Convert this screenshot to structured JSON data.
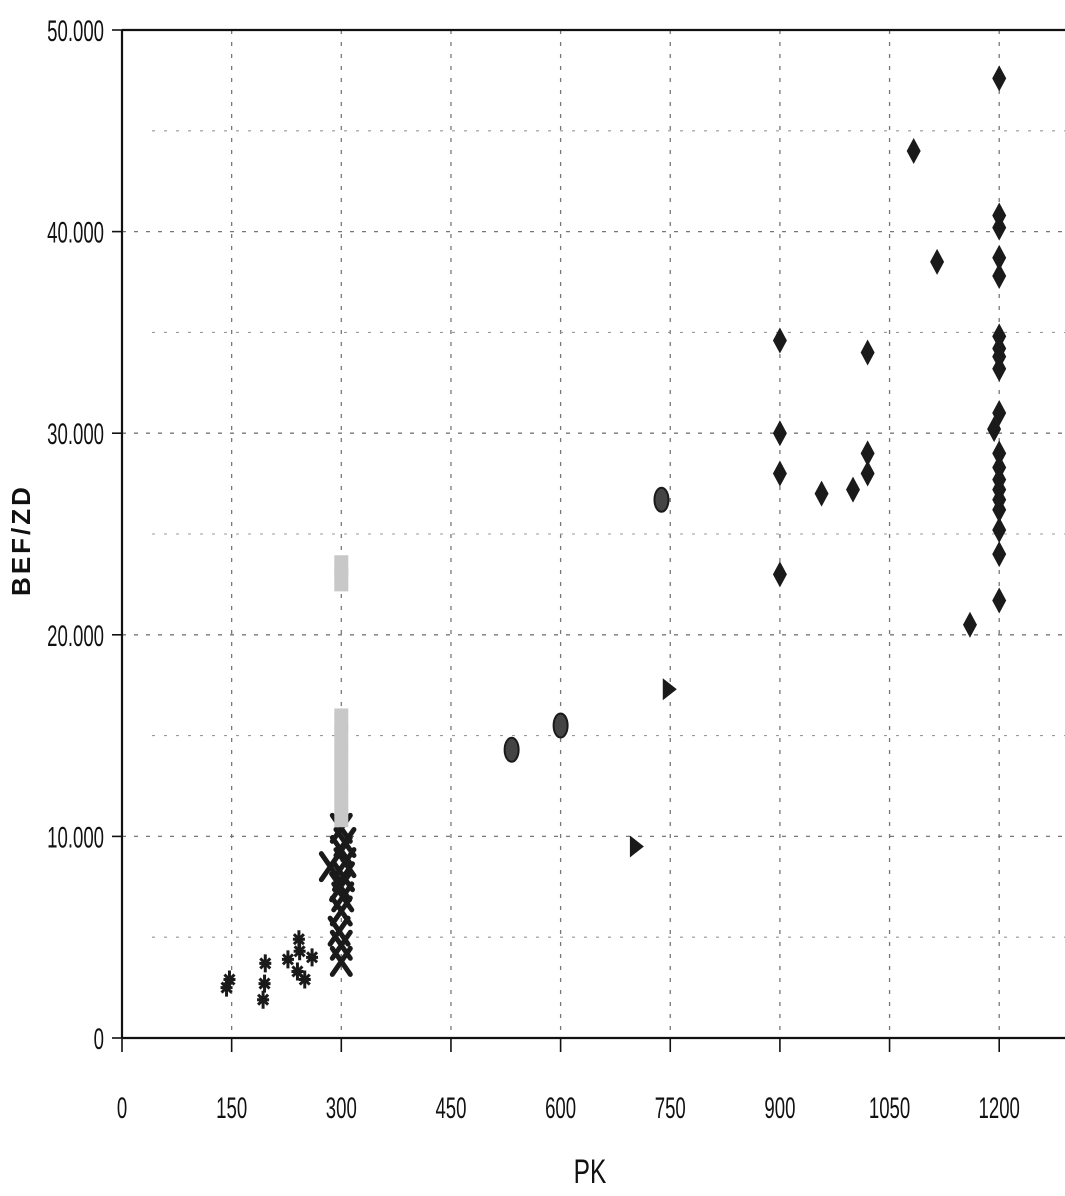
{
  "chart_data": {
    "type": "scatter",
    "xlabel": "PK",
    "ylabel": "BEF/ZD",
    "xlim": [
      0,
      1290
    ],
    "ylim": [
      0,
      50000
    ],
    "x_ticks": [
      0,
      150,
      300,
      450,
      600,
      750,
      900,
      1050,
      1200
    ],
    "x_tick_labels": [
      "0",
      "150",
      "300",
      "450",
      "600",
      "750",
      "900",
      "1050",
      "1200"
    ],
    "y_ticks": [
      0,
      10000,
      20000,
      30000,
      40000,
      50000
    ],
    "y_tick_labels": [
      "0",
      "10.000",
      "20.000",
      "30.000",
      "40.000",
      "50.000"
    ],
    "y_minor_grid": [
      5000,
      15000,
      25000,
      35000,
      45000
    ],
    "grid": true,
    "colors": {
      "marker": "#1a1a1a",
      "light_marker": "#c8c8c8",
      "grid": "#777777",
      "axis": "#111111"
    },
    "series": [
      {
        "marker": "star",
        "points": [
          [
            143,
            2500
          ],
          [
            147,
            2900
          ],
          [
            193,
            1900
          ],
          [
            195,
            2700
          ],
          [
            196,
            3700
          ],
          [
            227,
            3900
          ],
          [
            240,
            3300
          ],
          [
            242,
            4900
          ],
          [
            243,
            4300
          ],
          [
            250,
            2900
          ],
          [
            260,
            4000
          ]
        ]
      },
      {
        "marker": "x",
        "points": [
          [
            285,
            8500
          ],
          [
            297,
            5300
          ],
          [
            299,
            7500
          ],
          [
            300,
            3800
          ],
          [
            300,
            4600
          ],
          [
            300,
            6300
          ],
          [
            300,
            9300
          ],
          [
            300,
            10400
          ],
          [
            302,
            7000
          ],
          [
            303,
            8000
          ],
          [
            305,
            8700
          ],
          [
            305,
            9700
          ]
        ]
      },
      {
        "marker": "light-square",
        "points": [
          [
            300,
            11000
          ],
          [
            300,
            12000
          ],
          [
            300,
            13000
          ],
          [
            300,
            14000
          ],
          [
            300,
            15000
          ],
          [
            300,
            15800
          ],
          [
            300,
            22700
          ],
          [
            300,
            23400
          ]
        ]
      },
      {
        "marker": "ellipse",
        "points": [
          [
            533,
            14300
          ],
          [
            600,
            15500
          ],
          [
            738,
            26700
          ]
        ]
      },
      {
        "marker": "triangle",
        "points": [
          [
            703,
            9500
          ],
          [
            748,
            17300
          ]
        ]
      },
      {
        "marker": "diamond",
        "points": [
          [
            900,
            23000
          ],
          [
            900,
            28000
          ],
          [
            900,
            30000
          ],
          [
            900,
            34600
          ],
          [
            957,
            27000
          ],
          [
            1000,
            27200
          ],
          [
            1020,
            28000
          ],
          [
            1020,
            29000
          ],
          [
            1020,
            34000
          ],
          [
            1083,
            44000
          ],
          [
            1115,
            38500
          ],
          [
            1160,
            20500
          ],
          [
            1193,
            30200
          ],
          [
            1200,
            21700
          ],
          [
            1200,
            24000
          ],
          [
            1200,
            25200
          ],
          [
            1200,
            26200
          ],
          [
            1200,
            26700
          ],
          [
            1200,
            27200
          ],
          [
            1200,
            27700
          ],
          [
            1200,
            28300
          ],
          [
            1200,
            29000
          ],
          [
            1200,
            31000
          ],
          [
            1200,
            33200
          ],
          [
            1200,
            33800
          ],
          [
            1200,
            34200
          ],
          [
            1200,
            34800
          ],
          [
            1200,
            37800
          ],
          [
            1200,
            38700
          ],
          [
            1200,
            40200
          ],
          [
            1200,
            40800
          ],
          [
            1200,
            47600
          ]
        ]
      }
    ]
  }
}
